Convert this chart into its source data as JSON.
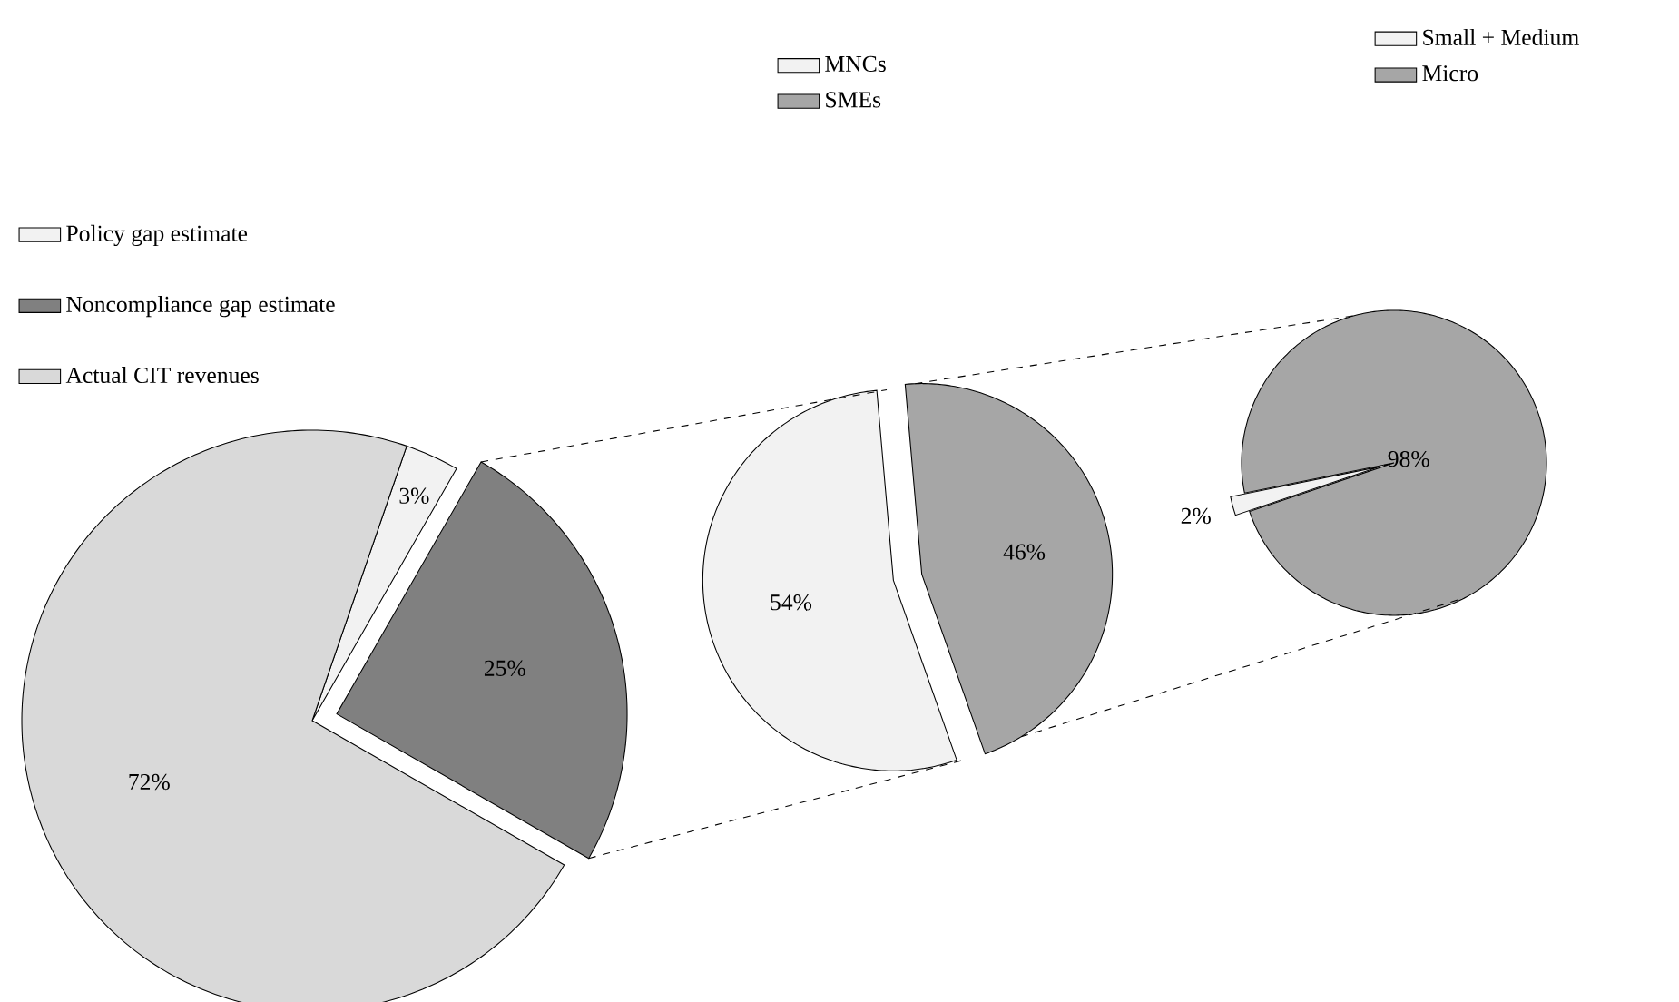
{
  "chart_data": [
    {
      "type": "pie",
      "categories": [
        "Policy gap estimate",
        "Noncompliance gap estimate",
        "Actual CIT revenues"
      ],
      "values": [
        3,
        25,
        72
      ],
      "value_labels": [
        "3%",
        "25%",
        "72%"
      ],
      "colors": [
        "#f2f2f2",
        "#808080",
        "#d9d9d9"
      ],
      "legend": "top left"
    },
    {
      "type": "pie",
      "categories": [
        "MNCs",
        "SMEs"
      ],
      "values": [
        54,
        46
      ],
      "value_labels": [
        "54%",
        "46%"
      ],
      "colors": [
        "#f2f2f2",
        "#a6a6a6"
      ],
      "legend": "top"
    },
    {
      "type": "pie",
      "categories": [
        "Small + Medium",
        "Micro"
      ],
      "values": [
        2,
        98
      ],
      "value_labels": [
        "2%",
        "98%"
      ],
      "colors": [
        "#f2f2f2",
        "#a6a6a6"
      ],
      "legend": "top right"
    }
  ]
}
